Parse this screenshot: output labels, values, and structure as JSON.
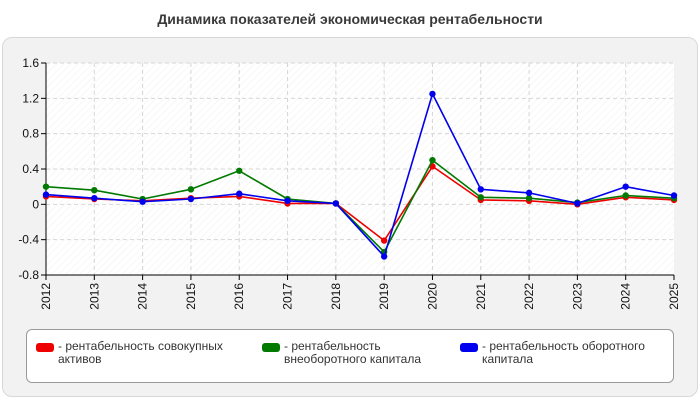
{
  "title": "Динамика показателей экономическая рентабельности",
  "colors": {
    "background": "#ffffff",
    "panel": "#f2f2f2",
    "plot": "#ffffff",
    "grid": "#d9d9d9"
  },
  "chart_data": {
    "type": "line",
    "title": "Динамика показателей экономическая рентабельности",
    "categories": [
      "2012",
      "2013",
      "2014",
      "2015",
      "2016",
      "2017",
      "2018",
      "2019",
      "2020",
      "2021",
      "2022",
      "2023",
      "2024",
      "2025"
    ],
    "ylim": [
      -0.8,
      1.6
    ],
    "yticks": [
      -0.8,
      -0.4,
      0,
      0.4,
      0.8,
      1.2,
      1.6
    ],
    "ytick_labels": [
      "-0.8",
      "-0.4",
      "0",
      "0.4",
      "0.8",
      "1.2",
      "1.6"
    ],
    "grid": true,
    "legend_position": "bottom",
    "series": [
      {
        "name": "- рентабельность совокупных активов",
        "color": "#ee0000",
        "values": [
          0.09,
          0.06,
          0.04,
          0.07,
          0.09,
          0.01,
          0.01,
          -0.41,
          0.43,
          0.05,
          0.04,
          0.0,
          0.08,
          0.05
        ]
      },
      {
        "name": "- рентабельность внеоборотного капитала",
        "color": "#007a00",
        "values": [
          0.2,
          0.16,
          0.06,
          0.17,
          0.38,
          0.06,
          0.01,
          -0.54,
          0.5,
          0.08,
          0.07,
          0.02,
          0.1,
          0.07
        ]
      },
      {
        "name": "- рентабельность оборотного капитала",
        "color": "#0000ee",
        "values": [
          0.11,
          0.07,
          0.03,
          0.06,
          0.12,
          0.04,
          0.01,
          -0.59,
          1.25,
          0.17,
          0.13,
          0.01,
          0.2,
          0.1
        ]
      }
    ]
  }
}
